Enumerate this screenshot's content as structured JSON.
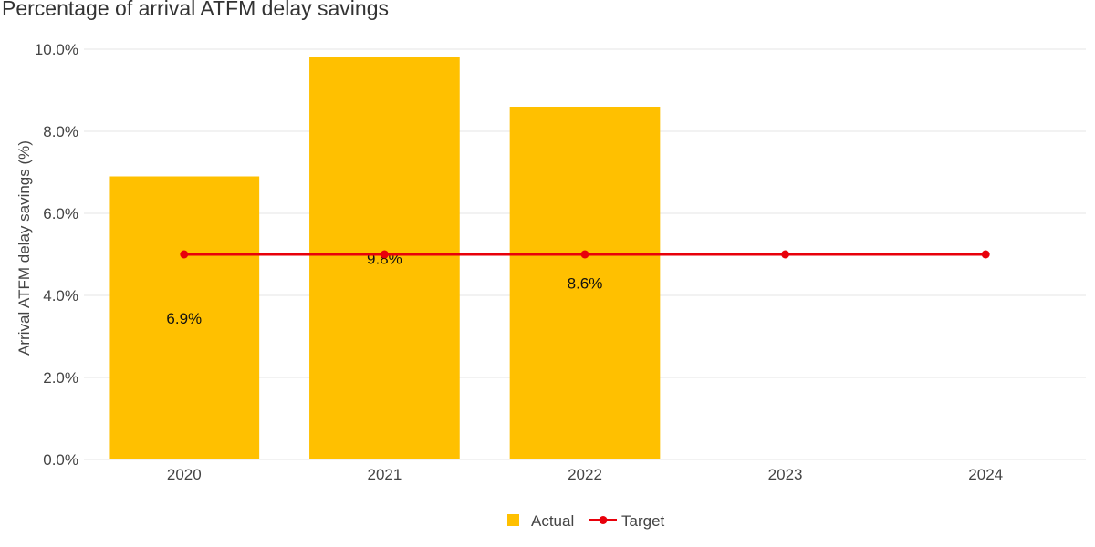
{
  "chart_data": {
    "type": "bar",
    "title": "Percentage of arrival ATFM delay savings",
    "xlabel": "",
    "ylabel": "Arrival ATFM delay savings (%)",
    "categories": [
      "2020",
      "2021",
      "2022",
      "2023",
      "2024"
    ],
    "ylim": [
      0,
      10
    ],
    "yticks": [
      0,
      2,
      4,
      6,
      8,
      10
    ],
    "ytick_labels": [
      "0.0%",
      "2.0%",
      "4.0%",
      "6.0%",
      "8.0%",
      "10.0%"
    ],
    "grid": true,
    "legend": "bottom-center",
    "series": [
      {
        "name": "Actual",
        "type": "bar",
        "color": "#FFC000",
        "values": [
          6.9,
          9.8,
          8.6,
          null,
          null
        ],
        "labels": [
          "6.9%",
          "9.8%",
          "8.6%",
          "",
          ""
        ]
      },
      {
        "name": "Target",
        "type": "line",
        "color": "#E8000B",
        "values": [
          5,
          5,
          5,
          5,
          5
        ]
      }
    ]
  }
}
